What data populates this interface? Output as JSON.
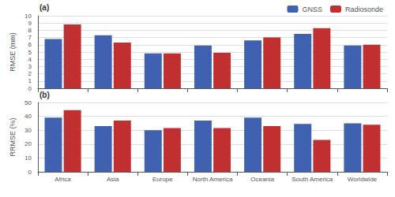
{
  "chart_data": [
    {
      "type": "bar",
      "ylabel": "RMSE (mm)",
      "annotations": [
        "(a)"
      ],
      "categories": [
        "Africa",
        "Asia",
        "Europe",
        "North America",
        "Oceania",
        "South America",
        "Worldwide"
      ],
      "series": [
        {
          "name": "GNSS",
          "color": "#4060B0",
          "values": [
            6.8,
            7.3,
            4.8,
            5.9,
            6.6,
            7.5,
            5.9
          ]
        },
        {
          "name": "Radiosonde",
          "color": "#C03030",
          "values": [
            8.8,
            6.3,
            4.8,
            4.9,
            7.0,
            8.3,
            6.0
          ]
        }
      ],
      "ylim": [
        0,
        10
      ],
      "yticks": [
        0,
        1,
        2,
        3,
        4,
        5,
        6,
        7,
        8,
        9,
        10
      ],
      "grid": true,
      "legend": "upper right",
      "tick_labels": "y"
    },
    {
      "type": "bar",
      "ylabel": "RRMSE (%)",
      "annotations": [
        "(b)"
      ],
      "categories": [
        "Africa",
        "Asia",
        "Europe",
        "North America",
        "Oceania",
        "South America",
        "Worldwide"
      ],
      "series": [
        {
          "color": "#4060B0",
          "values": [
            39.0,
            33.0,
            30.0,
            37.0,
            39.0,
            34.5,
            35.0
          ]
        },
        {
          "color": "#C03030",
          "values": [
            44.5,
            37.0,
            31.5,
            31.5,
            33.0,
            23.0,
            34.0
          ]
        }
      ],
      "ylim": [
        0,
        50
      ],
      "yticks": [
        0,
        10,
        20,
        30,
        40,
        50
      ],
      "grid": true
    }
  ]
}
